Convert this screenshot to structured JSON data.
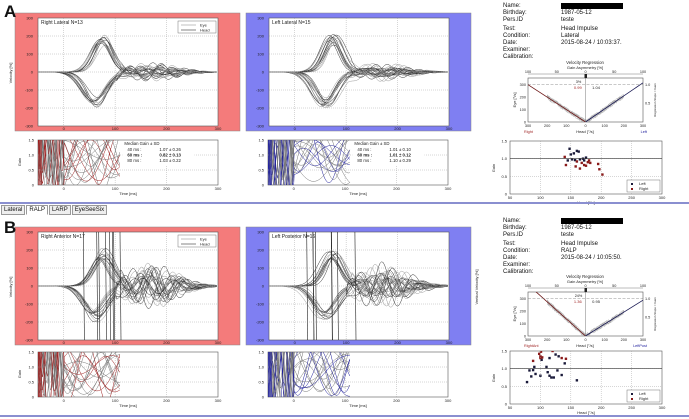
{
  "tabs": [
    "Lateral",
    "RALP",
    "LARP",
    "EyeSeeSix"
  ],
  "active_tab": 1,
  "colors": {
    "left_bg": "#f47b7b",
    "right_bg": "#7f7ff2",
    "eye_trace": "#333333",
    "head_trace": "#999999",
    "right_gain": "#9b1c1c",
    "left_gain": "#1c1c9b",
    "separator": "#8a8fd0"
  },
  "panels": [
    {
      "label": "A",
      "velocity_left": {
        "title": "Right Lateral  N=13",
        "legend": [
          "Eye",
          "Head"
        ],
        "ylabel": "Velocity [%]",
        "y_ticks": [
          "300",
          "200",
          "100",
          "0",
          "-100",
          "-200",
          "-300"
        ],
        "x_ticks": [
          "0",
          "100",
          "200",
          "300"
        ]
      },
      "velocity_right": {
        "title": "Left Lateral  N=15",
        "y_ticks": [
          "300",
          "200",
          "100",
          "0",
          "-100",
          "-200",
          "-300"
        ],
        "x_ticks": [
          "0",
          "100",
          "200",
          "300"
        ]
      },
      "gain_left": {
        "ylabel": "Gain",
        "xlabel": "Time [ms]",
        "y_ticks": [
          "1.5",
          "1.0",
          "0.5",
          "0"
        ],
        "x_ticks": [
          "0",
          "100",
          "200",
          "300"
        ],
        "median": {
          "title": "Median Gain ± SD",
          "rows": [
            [
              "40 ms :",
              "1.07 ± 0.26"
            ],
            [
              "60 ms :",
              "0.82 ± 0.13"
            ],
            [
              "80 ms :",
              "1.03 ± 0.22"
            ]
          ]
        }
      },
      "gain_right": {
        "xlabel": "Time [ms]",
        "y_ticks": [
          "1.5",
          "1.0",
          "0.5",
          "0"
        ],
        "x_ticks": [
          "0",
          "100",
          "200",
          "300"
        ],
        "median": {
          "title": "Median Gain ± SD",
          "rows": [
            [
              "40 ms :",
              "1.01 ± 0.10"
            ],
            [
              "60 ms :",
              "1.01 ± 0.12"
            ],
            [
              "80 ms :",
              "1.10 ± 0.29"
            ]
          ]
        }
      },
      "info": {
        "name_label": "Name:",
        "birthday_label": "Birthday:",
        "birthday": "1987-05-12",
        "persid_label": "Pers.ID",
        "persid": "teste",
        "test_label": "Test:",
        "test": "Head Impulse",
        "condition_label": "Condition:",
        "condition": "Lateral",
        "date_label": "Date:",
        "date": "2015-08-24 / 10:03:37.",
        "examiner_label": "Examiner:",
        "calibration_label": "Calibration:"
      },
      "regression": {
        "title": "Velocity Regression",
        "top_axis": "Gain Asymmetry [%]",
        "top_ticks": [
          "100",
          "50",
          "0",
          "50",
          "100"
        ],
        "bottom_ticks": [
          "300",
          "200",
          "100",
          "0",
          "100",
          "200",
          "300"
        ],
        "left_ticks": [
          "300",
          "200",
          "100",
          "0"
        ],
        "right_ticks": [
          "1.0",
          "0.5"
        ],
        "xlabel": "Head [°/s]",
        "ylabel": "Eye [°/s]",
        "right_label": "Regression Slope = Gain",
        "asymmetry": "3%",
        "gain_right": "0.99",
        "gain_left": "1.04",
        "side_left": "Right",
        "side_right": "Left",
        "slope_right": 0.99,
        "slope_left": 1.04
      },
      "scatter": {
        "ylabel": "Gain",
        "xlabel": "Head [°/s]",
        "x_ticks": [
          "50",
          "100",
          "150",
          "200",
          "250",
          "300"
        ],
        "y_ticks": [
          "1.5",
          "1.0",
          "0.5",
          "0"
        ],
        "legend": [
          "Left",
          "Right"
        ],
        "left_points": [
          [
            148,
            1.28
          ],
          [
            155,
            1.15
          ],
          [
            150,
            1.12
          ],
          [
            160,
            1.22
          ],
          [
            163,
            1.2
          ],
          [
            145,
            0.95
          ],
          [
            152,
            0.98
          ],
          [
            157,
            0.96
          ],
          [
            170,
            1.0
          ],
          [
            175,
            1.03
          ],
          [
            172,
            0.95
          ],
          [
            165,
            0.98
          ]
        ],
        "right_points": [
          [
            140,
            1.05
          ],
          [
            142,
            0.82
          ],
          [
            158,
            0.78
          ],
          [
            165,
            0.72
          ],
          [
            168,
            0.88
          ],
          [
            172,
            0.82
          ],
          [
            175,
            0.8
          ],
          [
            178,
            0.9
          ],
          [
            182,
            0.88
          ],
          [
            195,
            0.85
          ],
          [
            197,
            0.7
          ],
          [
            202,
            0.55
          ],
          [
            180,
            0.95
          ],
          [
            160,
            0.92
          ]
        ]
      }
    },
    {
      "label": "B",
      "velocity_left": {
        "title": "Right Anterior  N=17",
        "legend": [
          "Eye",
          "Head"
        ],
        "ylabel": "Velocity [%]",
        "y_ticks": [
          "300",
          "200",
          "100",
          "0",
          "-100",
          "-200",
          "-300"
        ],
        "x_ticks": [
          "0",
          "100",
          "200",
          "300"
        ]
      },
      "velocity_right": {
        "title": "Left Posterior  N=16",
        "ylabel": "Vertical Velocity [%]",
        "y_ticks": [
          "300",
          "200",
          "100",
          "0",
          "-100",
          "-200",
          "-300"
        ],
        "x_ticks": [
          "0",
          "100",
          "200",
          "300"
        ]
      },
      "gain_left": {
        "ylabel": "Gain",
        "xlabel": "Time [ms]",
        "y_ticks": [
          "1.5",
          "1.0",
          "0.5",
          "0"
        ],
        "x_ticks": [
          "0",
          "100",
          "200",
          "300"
        ]
      },
      "gain_right": {
        "xlabel": "Time [ms]",
        "y_ticks": [
          "1.5",
          "1.0",
          "0.5",
          "0"
        ],
        "x_ticks": [
          "0",
          "100",
          "200",
          "300"
        ]
      },
      "info": {
        "name_label": "Name:",
        "birthday_label": "Birthday:",
        "birthday": "1987-05-12",
        "persid_label": "Pers.ID",
        "persid": "teste",
        "test_label": "Test:",
        "test": "Head Impulse",
        "condition_label": "Condition:",
        "condition": "RALP",
        "date_label": "Date:",
        "date": "2015-08-24 / 10:05:50.",
        "examiner_label": "Examiner:",
        "calibration_label": "Calibration:"
      },
      "regression": {
        "title": "Velocity Regression",
        "top_axis": "Gain Asymmetry [%]",
        "top_ticks": [
          "100",
          "50",
          "0",
          "50",
          "100"
        ],
        "bottom_ticks": [
          "300",
          "200",
          "100",
          "0",
          "100",
          "200",
          "300"
        ],
        "left_ticks": [
          "300",
          "200",
          "100",
          "0"
        ],
        "right_ticks": [
          "1.0",
          "0.5"
        ],
        "xlabel": "Head [°/s]",
        "ylabel": "Eye [°/s]",
        "right_label": "Regression Slope = Gain",
        "asymmetry": "24%",
        "gain_right": "1.36",
        "gain_left": "0.95",
        "side_left": "RightAnt",
        "side_right": "LeftPost",
        "slope_right": 1.36,
        "slope_left": 0.95
      },
      "scatter": {
        "ylabel": "Gain",
        "xlabel": "Head [°/s]",
        "x_ticks": [
          "50",
          "100",
          "150",
          "200",
          "250",
          "300"
        ],
        "y_ticks": [
          "1.5",
          "1.0",
          "0.5",
          "0"
        ],
        "legend": [
          "Left",
          "Right"
        ],
        "left_points": [
          [
            78,
            0.62
          ],
          [
            82,
            0.95
          ],
          [
            85,
            0.78
          ],
          [
            88,
            0.96
          ],
          [
            90,
            1.05
          ],
          [
            92,
            0.85
          ],
          [
            100,
            0.8
          ],
          [
            102,
            1.25
          ],
          [
            110,
            1.05
          ],
          [
            112,
            0.9
          ],
          [
            115,
            0.8
          ],
          [
            118,
            0.75
          ],
          [
            122,
            0.75
          ],
          [
            128,
            0.95
          ],
          [
            135,
            0.82
          ],
          [
            140,
            1.15
          ],
          [
            160,
            0.67
          ],
          [
            115,
            1.3
          ],
          [
            125,
            1.4
          ],
          [
            130,
            1.35
          ]
        ],
        "right_points": [
          [
            98,
            1.42
          ],
          [
            100,
            1.35
          ],
          [
            100,
            1.3
          ],
          [
            101,
            1.48
          ],
          [
            103,
            1.32
          ],
          [
            120,
            1.5
          ],
          [
            135,
            1.3
          ],
          [
            142,
            1.28
          ],
          [
            88,
            1.22
          ]
        ]
      }
    }
  ]
}
